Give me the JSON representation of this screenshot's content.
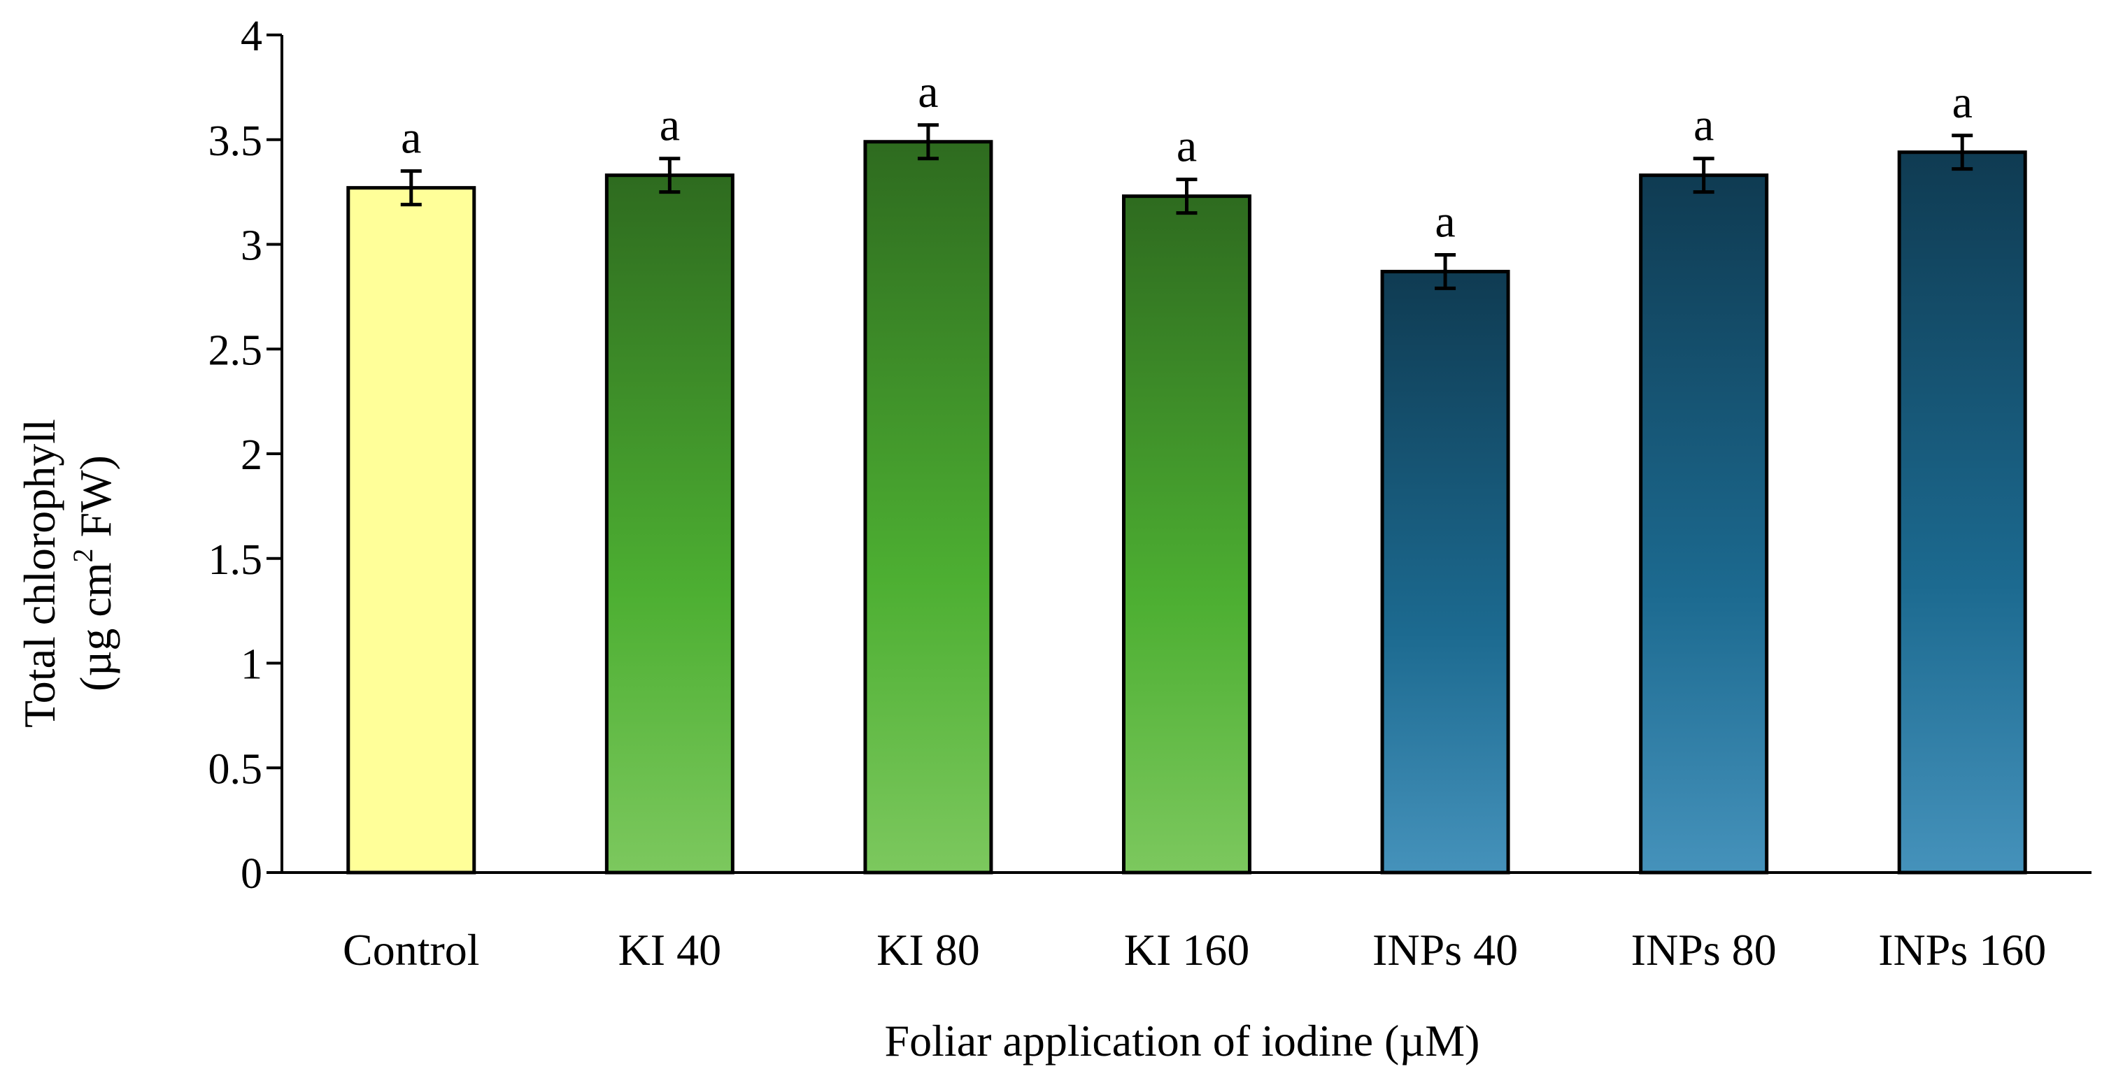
{
  "chart_data": {
    "type": "bar",
    "title": "",
    "categories": [
      "Control",
      "KI 40",
      "KI 80",
      "KI 160",
      "INPs 40",
      "INPs 80",
      "INPs 160"
    ],
    "values": [
      3.27,
      3.33,
      3.49,
      3.23,
      2.87,
      3.33,
      3.44
    ],
    "error": [
      0.08,
      0.08,
      0.08,
      0.08,
      0.08,
      0.08,
      0.08
    ],
    "letters": [
      "a",
      "a",
      "a",
      "a",
      "a",
      "a",
      "a"
    ],
    "xlabel": "Foliar application of iodine (µM)",
    "ylabel_line1": "Total chlorophyll",
    "ylabel_line2_prefix": "(µg cm",
    "ylabel_line2_sup": "2",
    "ylabel_line2_suffix": " FW)",
    "ylim": [
      0,
      4
    ],
    "yticks": [
      0,
      0.5,
      1,
      1.5,
      2,
      2.5,
      3,
      3.5,
      4
    ],
    "ytick_labels": [
      "0",
      "0.5",
      "1",
      "1.5",
      "2",
      "2.5",
      "3",
      "3.5",
      "4"
    ],
    "grid": false,
    "colors": {
      "control": "#FFFF99",
      "ki_top": "#2E6B1F",
      "ki_bottom": "#7CC85E",
      "inp_top": "#0F3B52",
      "inp_bottom": "#4592BB",
      "axis": "#000000"
    },
    "bar_groups": [
      "control",
      "ki",
      "ki",
      "ki",
      "inp",
      "inp",
      "inp"
    ]
  }
}
